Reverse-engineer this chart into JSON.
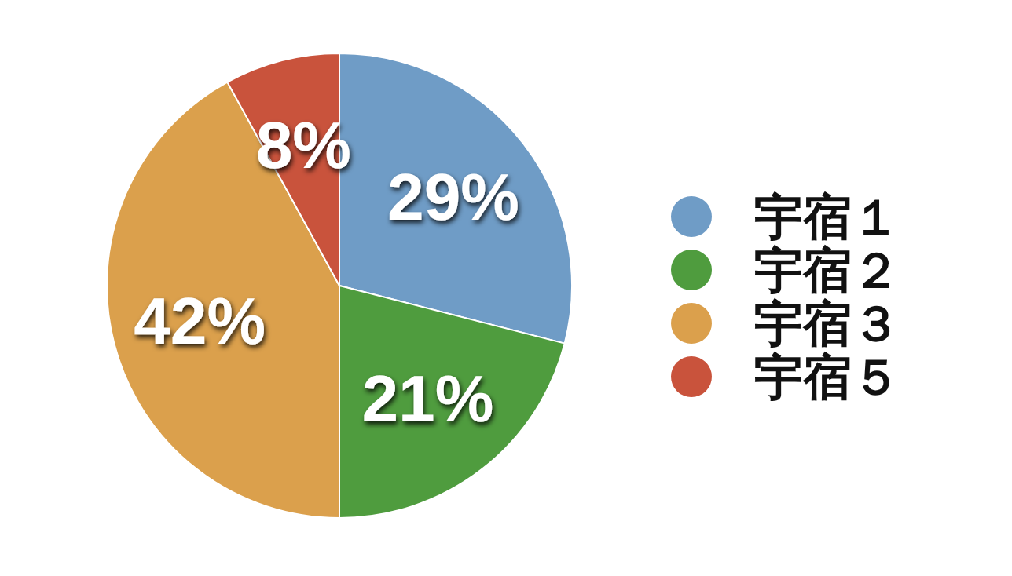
{
  "chart_data": {
    "type": "pie",
    "categories": [
      "宇宿１",
      "宇宿２",
      "宇宿３",
      "宇宿５"
    ],
    "values": [
      29,
      21,
      42,
      8
    ],
    "colors": [
      "#6f9cc6",
      "#4f9c3e",
      "#dba04c",
      "#c9533c"
    ],
    "value_labels": [
      "29%",
      "21%",
      "42%",
      "8%"
    ],
    "legend": "right"
  }
}
